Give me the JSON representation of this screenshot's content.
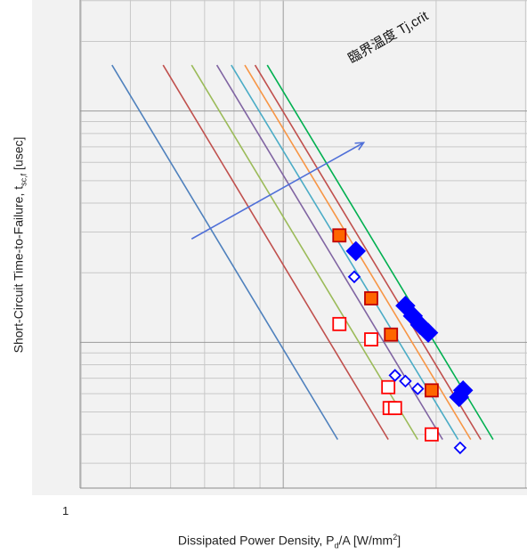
{
  "chart_data": {
    "type": "line",
    "xlabel": "Dissipated Power Density, P",
    "xlabel_sub": "d",
    "xlabel_rest": "/A [W/mm",
    "xlabel_sup": "2",
    "xlabel_end": "]",
    "ylabel": "Short-Circuit Time-to-Failure, t",
    "ylabel_sub": "sc,f",
    "ylabel_end": " [usec]",
    "x_tick_labels": [
      "1"
    ],
    "annotation": "臨界温度 Tj,crit",
    "x_scale": "log",
    "y_scale": "log",
    "grid": true,
    "lines": [
      {
        "color": "#4f81bd",
        "x": [
          0.46,
          1.28
        ],
        "y": [
          15.8,
          0.38
        ]
      },
      {
        "color": "#c0504d",
        "x": [
          0.58,
          1.61
        ],
        "y": [
          15.8,
          0.38
        ]
      },
      {
        "color": "#9bbb59",
        "x": [
          0.66,
          1.84
        ],
        "y": [
          15.8,
          0.38
        ]
      },
      {
        "color": "#8064a2",
        "x": [
          0.74,
          2.06
        ],
        "y": [
          15.8,
          0.38
        ]
      },
      {
        "color": "#4bacc6",
        "x": [
          0.79,
          2.21
        ],
        "y": [
          15.8,
          0.38
        ]
      },
      {
        "color": "#f79646",
        "x": [
          0.84,
          2.34
        ],
        "y": [
          15.8,
          0.38
        ]
      },
      {
        "color": "#c0504d",
        "x": [
          0.88,
          2.45
        ],
        "y": [
          15.8,
          0.38
        ]
      },
      {
        "color": "#00b050",
        "x": [
          0.93,
          2.59
        ],
        "y": [
          15.8,
          0.38
        ]
      }
    ],
    "markers": [
      {
        "shape": "square",
        "fill": "#ff6600",
        "stroke": "#c00000",
        "x": 1.29,
        "y": 2.9
      },
      {
        "shape": "square",
        "fill": "#ff6600",
        "stroke": "#c00000",
        "x": 1.49,
        "y": 1.55
      },
      {
        "shape": "square",
        "fill": "#ff6600",
        "stroke": "#c00000",
        "x": 1.63,
        "y": 1.08
      },
      {
        "shape": "square",
        "fill": "#ff6600",
        "stroke": "#c00000",
        "x": 1.96,
        "y": 0.62
      },
      {
        "shape": "square",
        "fill": "#ffffff",
        "stroke": "#ff0000",
        "x": 1.29,
        "y": 1.2
      },
      {
        "shape": "square",
        "fill": "#ffffff",
        "stroke": "#ff0000",
        "x": 1.49,
        "y": 1.03
      },
      {
        "shape": "square",
        "fill": "#ffffff",
        "stroke": "#ff0000",
        "x": 1.61,
        "y": 0.64
      },
      {
        "shape": "square",
        "fill": "#ffffff",
        "stroke": "#ff0000",
        "x": 1.62,
        "y": 0.52
      },
      {
        "shape": "square",
        "fill": "#ffffff",
        "stroke": "#ff0000",
        "x": 1.66,
        "y": 0.52
      },
      {
        "shape": "square",
        "fill": "#ffffff",
        "stroke": "#ff0000",
        "x": 1.96,
        "y": 0.4
      },
      {
        "shape": "diamond",
        "fill": "#0000ff",
        "stroke": "#0000ff",
        "x": 1.39,
        "y": 2.48
      },
      {
        "shape": "diamond",
        "fill": "#0000ff",
        "stroke": "#0000ff",
        "x": 1.74,
        "y": 1.44
      },
      {
        "shape": "diamond",
        "fill": "#0000ff",
        "stroke": "#0000ff",
        "x": 1.8,
        "y": 1.3
      },
      {
        "shape": "diamond",
        "fill": "#0000ff",
        "stroke": "#0000ff",
        "x": 1.86,
        "y": 1.19
      },
      {
        "shape": "diamond",
        "fill": "#0000ff",
        "stroke": "#0000ff",
        "x": 1.93,
        "y": 1.1
      },
      {
        "shape": "diamond",
        "fill": "#0000ff",
        "stroke": "#0000ff",
        "x": 2.26,
        "y": 0.62
      },
      {
        "shape": "diamond",
        "fill": "#0000ff",
        "stroke": "#0000ff",
        "x": 2.22,
        "y": 0.58
      },
      {
        "shape": "diamond",
        "fill": "#ffffff",
        "stroke": "#0000ff",
        "x": 1.38,
        "y": 1.92
      },
      {
        "shape": "diamond",
        "fill": "#ffffff",
        "stroke": "#0000ff",
        "x": 1.66,
        "y": 0.72
      },
      {
        "shape": "diamond",
        "fill": "#ffffff",
        "stroke": "#0000ff",
        "x": 1.74,
        "y": 0.68
      },
      {
        "shape": "diamond",
        "fill": "#ffffff",
        "stroke": "#0000ff",
        "x": 1.84,
        "y": 0.63
      },
      {
        "shape": "diamond",
        "fill": "#ffffff",
        "stroke": "#0000ff",
        "x": 2.23,
        "y": 0.35
      }
    ],
    "arrow": {
      "color": "#4f6fd8",
      "from": [
        0.66,
        2.8
      ],
      "to": [
        1.44,
        7.3
      ]
    }
  }
}
